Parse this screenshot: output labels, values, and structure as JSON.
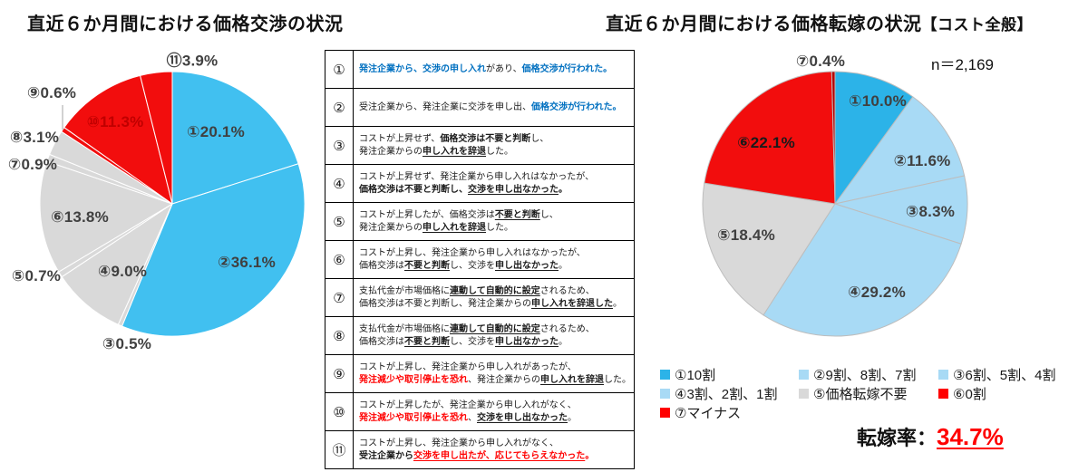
{
  "chart_data": [
    {
      "id": "negotiation",
      "type": "pie",
      "title": "直近６か月間における価格交渉の状況",
      "legend_position": "none",
      "slices": [
        {
          "num": "①",
          "value": 20.1,
          "color": "#41C0F0"
        },
        {
          "num": "②",
          "value": 36.1,
          "color": "#41C0F0"
        },
        {
          "num": "③",
          "value": 0.5,
          "color": "#D9D9D9"
        },
        {
          "num": "④",
          "value": 9.0,
          "color": "#D9D9D9"
        },
        {
          "num": "⑤",
          "value": 0.7,
          "color": "#D9D9D9"
        },
        {
          "num": "⑥",
          "value": 13.8,
          "color": "#D9D9D9"
        },
        {
          "num": "⑦",
          "value": 0.9,
          "color": "#D9D9D9"
        },
        {
          "num": "⑧",
          "value": 3.1,
          "color": "#D9D9D9"
        },
        {
          "num": "⑨",
          "value": 0.6,
          "color": "#F20D0D"
        },
        {
          "num": "⑩",
          "value": 11.3,
          "color": "#F20D0D",
          "label_color": "#C00000"
        },
        {
          "num": "⑪",
          "value": 3.9,
          "color": "#F20D0D"
        }
      ]
    },
    {
      "id": "passthrough",
      "type": "pie",
      "title": "直近６か月間における価格転嫁の状況",
      "title_suffix": "【コスト全般】",
      "n_label": "n＝2,169",
      "legend_position": "bottom",
      "slices": [
        {
          "num": "①",
          "value": 10.0,
          "color": "#2CB3E8"
        },
        {
          "num": "②",
          "value": 11.6,
          "color": "#A8DAF5"
        },
        {
          "num": "③",
          "value": 8.3,
          "color": "#A8DAF5"
        },
        {
          "num": "④",
          "value": 29.2,
          "color": "#A8DAF5"
        },
        {
          "num": "⑤",
          "value": 18.4,
          "color": "#D9D9D9"
        },
        {
          "num": "⑥",
          "value": 22.1,
          "color": "#F20D0D",
          "label_color": "#1a1a1a"
        },
        {
          "num": "⑦",
          "value": 0.4,
          "color": "#B50000"
        }
      ],
      "legend": [
        {
          "label": "①10割",
          "color": "#2CB3E8"
        },
        {
          "label": "②9割、8割、7割",
          "color": "#A8DAF5"
        },
        {
          "label": "③6割、5割、4割",
          "color": "#A8DAF5"
        },
        {
          "label": "④3割、2割、1割",
          "color": "#A8DAF5"
        },
        {
          "label": "⑤価格転嫁不要",
          "color": "#D9D9D9"
        },
        {
          "label": "⑥0割",
          "color": "#FF0000"
        },
        {
          "label": "⑦マイナス",
          "color": "#FF0000"
        }
      ],
      "rate_label": "転嫁率：",
      "rate_value": "34.7%"
    }
  ],
  "definition_table": {
    "rows": [
      {
        "num": "①",
        "lines": [
          [
            {
              "t": "発注企業から、交渉の申し入れ",
              "s": "blue"
            },
            {
              "t": "があり、",
              "s": ""
            },
            {
              "t": "価格交渉が行われた。",
              "s": "blue"
            }
          ]
        ]
      },
      {
        "num": "②",
        "lines": [
          [
            {
              "t": "受注企業から、発注企業に交渉を申し出、",
              "s": ""
            },
            {
              "t": "価格交渉が行われた。",
              "s": "blue"
            }
          ]
        ]
      },
      {
        "num": "③",
        "lines": [
          [
            {
              "t": "コストが上昇せず、",
              "s": ""
            },
            {
              "t": "価格交渉は不要と判断",
              "s": "b"
            },
            {
              "t": "し、",
              "s": ""
            }
          ],
          [
            {
              "t": "発注企業からの",
              "s": ""
            },
            {
              "t": "申し入れを辞退",
              "s": "bu"
            },
            {
              "t": "した。",
              "s": ""
            }
          ]
        ]
      },
      {
        "num": "④",
        "lines": [
          [
            {
              "t": "コストが上昇せず、発注企業から申し入れはなかったが、",
              "s": ""
            }
          ],
          [
            {
              "t": "価格交渉は不要と判断し、",
              "s": "b"
            },
            {
              "t": "交渉を申し出なかった",
              "s": "bu"
            },
            {
              "t": "。",
              "s": "b"
            }
          ]
        ]
      },
      {
        "num": "⑤",
        "lines": [
          [
            {
              "t": "コストが上昇したが、価格交渉は",
              "s": ""
            },
            {
              "t": "不要と判断",
              "s": "bu"
            },
            {
              "t": "し、",
              "s": ""
            }
          ],
          [
            {
              "t": "発注企業からの",
              "s": ""
            },
            {
              "t": "申し入れを辞退",
              "s": "bu"
            },
            {
              "t": "した。",
              "s": ""
            }
          ]
        ]
      },
      {
        "num": "⑥",
        "lines": [
          [
            {
              "t": "コストが上昇し、発注企業から申し入れはなかったが、",
              "s": ""
            }
          ],
          [
            {
              "t": "価格交渉は",
              "s": ""
            },
            {
              "t": "不要と判断",
              "s": "bu"
            },
            {
              "t": "し、交渉を",
              "s": ""
            },
            {
              "t": "申し出なかった",
              "s": "bu"
            },
            {
              "t": "。",
              "s": ""
            }
          ]
        ]
      },
      {
        "num": "⑦",
        "lines": [
          [
            {
              "t": "支払代金が市場価格に",
              "s": ""
            },
            {
              "t": "連動して自動的に設定",
              "s": "bu"
            },
            {
              "t": "されるため、",
              "s": ""
            }
          ],
          [
            {
              "t": "価格交渉は不要と判断し、発注企業からの",
              "s": ""
            },
            {
              "t": "申し入れを辞退した",
              "s": "bu"
            },
            {
              "t": "。",
              "s": ""
            }
          ]
        ]
      },
      {
        "num": "⑧",
        "lines": [
          [
            {
              "t": "支払代金が市場価格に",
              "s": ""
            },
            {
              "t": "連動して自動的に設定",
              "s": "bu"
            },
            {
              "t": "されるため、",
              "s": ""
            }
          ],
          [
            {
              "t": "価格交渉は",
              "s": ""
            },
            {
              "t": "不要と判断",
              "s": "bu"
            },
            {
              "t": "し、交渉を",
              "s": ""
            },
            {
              "t": "申し出なかった",
              "s": "bu"
            },
            {
              "t": "。",
              "s": ""
            }
          ]
        ]
      },
      {
        "num": "⑨",
        "lines": [
          [
            {
              "t": "コストが上昇し、発注企業から申し入れがあったが、",
              "s": ""
            }
          ],
          [
            {
              "t": "発注減少や取引停止を恐れ",
              "s": "r"
            },
            {
              "t": "、発注企業からの",
              "s": ""
            },
            {
              "t": "申し入れを辞退",
              "s": "bu"
            },
            {
              "t": "した。",
              "s": ""
            }
          ]
        ]
      },
      {
        "num": "⑩",
        "lines": [
          [
            {
              "t": "コストが上昇したが、発注企業から申し入れがなく、",
              "s": ""
            }
          ],
          [
            {
              "t": "発注減少や取引停止を恐れ",
              "s": "r"
            },
            {
              "t": "、",
              "s": ""
            },
            {
              "t": "交渉を申し出なかった",
              "s": "bu"
            },
            {
              "t": "。",
              "s": ""
            }
          ]
        ]
      },
      {
        "num": "⑪",
        "lines": [
          [
            {
              "t": "コストが上昇し、発注企業から申し入れがなく、",
              "s": ""
            }
          ],
          [
            {
              "t": "受注企業から",
              "s": "b"
            },
            {
              "t": "交渉を申し出たが、応じてもらえなかった",
              "s": "ru"
            },
            {
              "t": "。",
              "s": "r"
            }
          ]
        ]
      }
    ]
  }
}
